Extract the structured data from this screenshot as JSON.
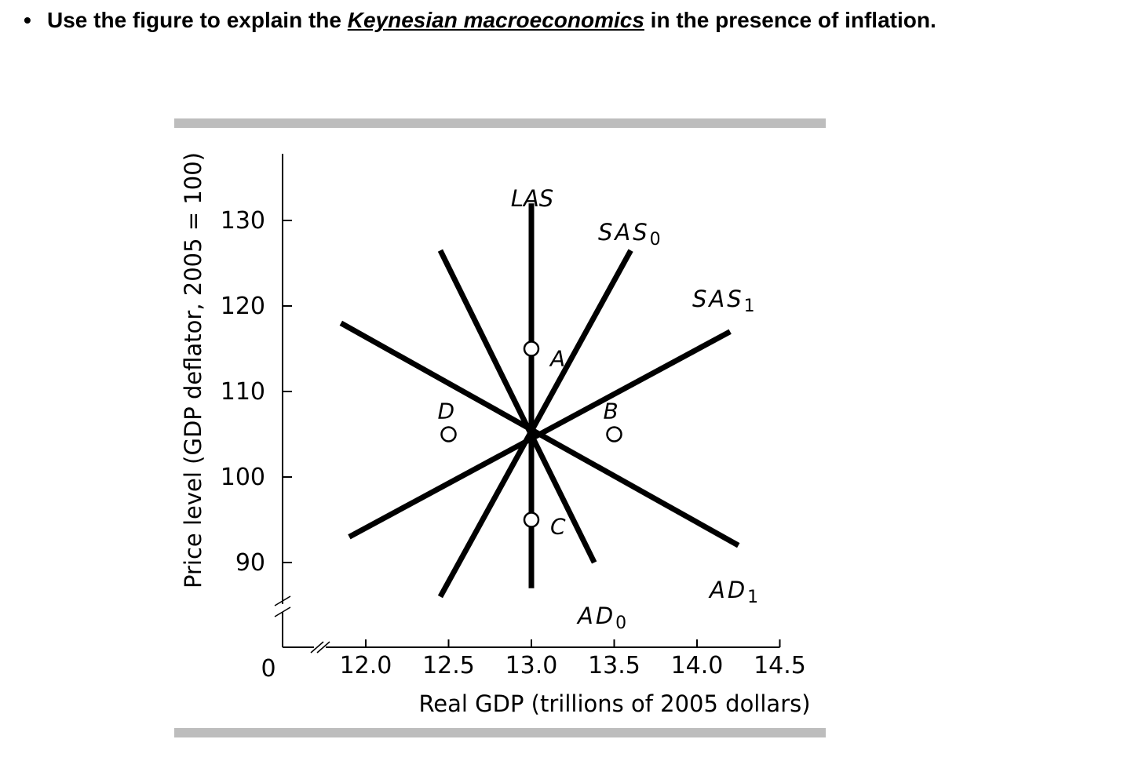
{
  "question": {
    "bullet": "•",
    "prefix": "Use the figure to explain the ",
    "emphasis": "Keynesian macroeconomics",
    "suffix": " in the presence of inflation."
  },
  "chart_data": {
    "type": "line",
    "title": "",
    "xlabel": "Real GDP (trillions of 2005 dollars)",
    "ylabel": "Price level (GDP deflator, 2005 = 100)",
    "origin_label": "0",
    "xlim": [
      12.0,
      14.5
    ],
    "ylim": [
      90,
      130
    ],
    "x_ticks": [
      12.0,
      12.5,
      13.0,
      13.5,
      14.0,
      14.5
    ],
    "x_tick_labels": [
      "12.0",
      "12.5",
      "13.0",
      "13.5",
      "14.0",
      "14.5"
    ],
    "y_ticks": [
      90,
      100,
      110,
      120,
      130
    ],
    "y_tick_labels": [
      "90",
      "100",
      "110",
      "120",
      "130"
    ],
    "axis_breaks": true,
    "grid": false,
    "series": [
      {
        "name": "LAS",
        "label_main": "LAS",
        "label_sub": "",
        "points": [
          [
            13.0,
            87
          ],
          [
            13.0,
            132
          ]
        ]
      },
      {
        "name": "SAS0",
        "label_main": "SAS",
        "label_sub": "0",
        "points": [
          [
            12.45,
            86
          ],
          [
            13.6,
            126.5
          ]
        ]
      },
      {
        "name": "SAS1",
        "label_main": "SAS",
        "label_sub": "1",
        "points": [
          [
            11.9,
            93
          ],
          [
            14.2,
            117
          ]
        ]
      },
      {
        "name": "AD0",
        "label_main": "AD",
        "label_sub": "0",
        "points": [
          [
            12.45,
            126.5
          ],
          [
            13.38,
            90
          ]
        ]
      },
      {
        "name": "AD1",
        "label_main": "AD",
        "label_sub": "1",
        "points": [
          [
            11.85,
            118
          ],
          [
            14.25,
            92
          ]
        ]
      }
    ],
    "points": [
      {
        "label": "A",
        "x": 13.0,
        "y": 115
      },
      {
        "label": "B",
        "x": 13.5,
        "y": 105
      },
      {
        "label": "C",
        "x": 13.0,
        "y": 95
      },
      {
        "label": "D",
        "x": 12.5,
        "y": 105
      }
    ]
  }
}
